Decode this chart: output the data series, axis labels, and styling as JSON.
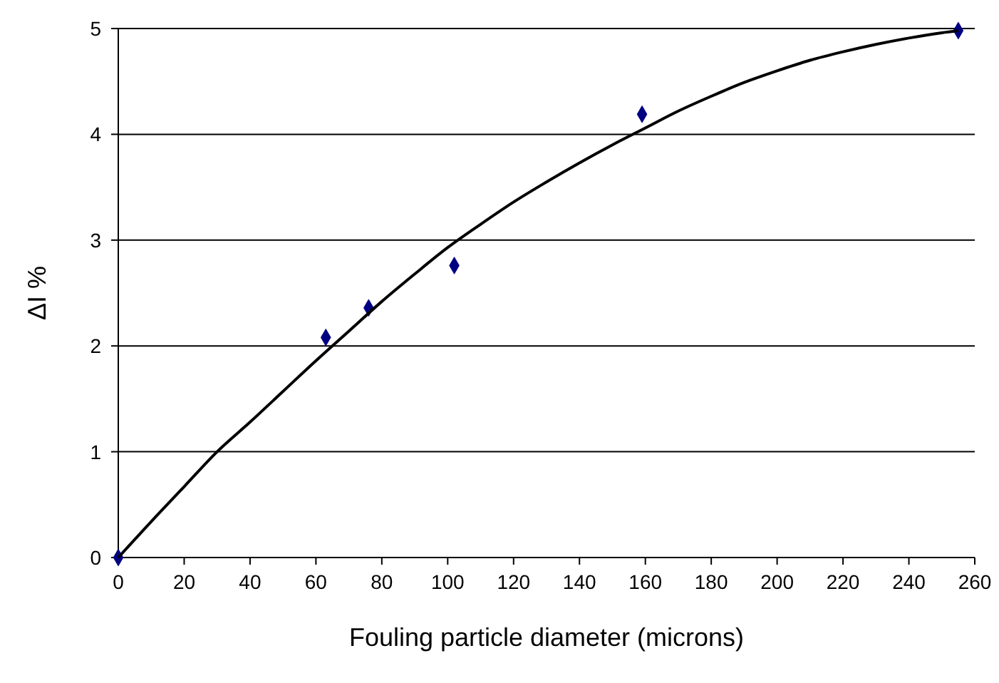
{
  "chart_data": {
    "type": "scatter",
    "xlabel": "Fouling particle diameter (microns)",
    "ylabel": "ΔI %",
    "xlim": [
      0,
      260
    ],
    "ylim": [
      0,
      5
    ],
    "xticks": [
      0,
      20,
      40,
      60,
      80,
      100,
      120,
      140,
      160,
      180,
      200,
      220,
      240,
      260
    ],
    "yticks": [
      0,
      1,
      2,
      3,
      4,
      5
    ],
    "grid": "y",
    "marker": "diamond",
    "series": [
      {
        "type": "scatter",
        "color": "#000080",
        "x": [
          0,
          63,
          76,
          102,
          159,
          255
        ],
        "values": [
          0,
          2.08,
          2.36,
          2.76,
          4.19,
          4.98
        ]
      },
      {
        "type": "line",
        "color": "#000000",
        "marker": "none",
        "x": [
          0,
          10,
          20,
          30,
          40,
          50,
          60,
          70,
          80,
          90,
          100,
          110,
          120,
          130,
          140,
          150,
          160,
          170,
          180,
          190,
          200,
          210,
          220,
          230,
          240,
          250,
          255
        ],
        "values": [
          0,
          0.34,
          0.67,
          1.0,
          1.28,
          1.57,
          1.86,
          2.14,
          2.42,
          2.68,
          2.93,
          3.15,
          3.36,
          3.55,
          3.73,
          3.9,
          4.06,
          4.22,
          4.36,
          4.49,
          4.6,
          4.7,
          4.78,
          4.85,
          4.91,
          4.96,
          4.98
        ]
      }
    ]
  }
}
